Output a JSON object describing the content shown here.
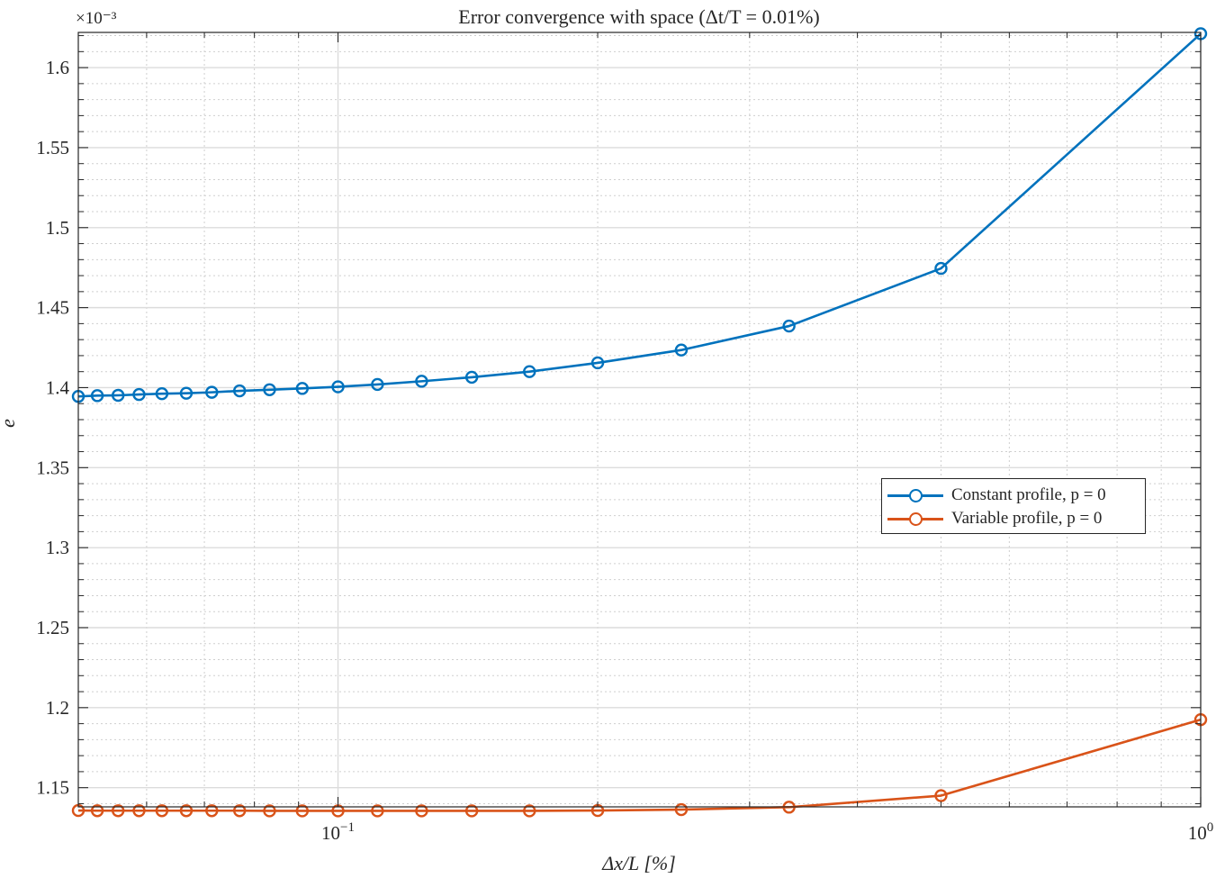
{
  "chart_data": {
    "type": "line",
    "title": "Error convergence with space (Δt/T = 0.01%)",
    "xlabel": "Δx/L  [%]",
    "ylabel": "e",
    "xscale": "log",
    "xlim": [
      0.05,
      1.0
    ],
    "ylim": [
      1.138,
      1.622
    ],
    "y_multiplier": "×10⁻³",
    "yticks": [
      "1.15",
      "1.2",
      "1.25",
      "1.3",
      "1.35",
      "1.4",
      "1.45",
      "1.5",
      "1.55",
      "1.6"
    ],
    "xticks": [
      {
        "base": "10",
        "exp": "−1",
        "value": 0.1
      },
      {
        "base": "10",
        "exp": "0",
        "value": 1.0
      }
    ],
    "grid": true,
    "legend_position": "center-right",
    "x": [
      0.05,
      0.0526,
      0.0556,
      0.0588,
      0.0625,
      0.0667,
      0.0714,
      0.0769,
      0.0833,
      0.0909,
      0.1,
      0.1111,
      0.125,
      0.1429,
      0.1667,
      0.2,
      0.25,
      0.3333,
      0.5,
      1.0
    ],
    "series": [
      {
        "name": "Constant profile, p = 0",
        "color": "#0072BD",
        "values": [
          1.3945,
          1.395,
          1.3952,
          1.3957,
          1.3962,
          1.3965,
          1.3971,
          1.398,
          1.3987,
          1.3995,
          1.4005,
          1.402,
          1.404,
          1.4065,
          1.41,
          1.4155,
          1.4235,
          1.4385,
          1.4745,
          1.6212
        ]
      },
      {
        "name": "Variable profile, p = 0",
        "color": "#D95319",
        "values": [
          1.1357,
          1.1356,
          1.1356,
          1.1356,
          1.1356,
          1.1356,
          1.1356,
          1.1356,
          1.1355,
          1.1355,
          1.1355,
          1.1355,
          1.1355,
          1.1355,
          1.1355,
          1.1357,
          1.1363,
          1.1378,
          1.145,
          1.1925
        ]
      }
    ]
  }
}
